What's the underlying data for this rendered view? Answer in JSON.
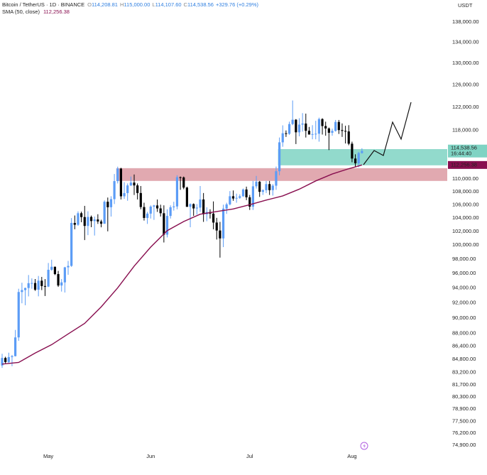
{
  "chart_data": {
    "type": "candlestick",
    "symbol": "Bitcoin / TetherUS · 1D · BINANCE",
    "ohlc_legend": [
      {
        "key": "O",
        "value": "114,208.81"
      },
      {
        "key": "H",
        "value": "115,000.00"
      },
      {
        "key": "L",
        "value": "114,107.60"
      },
      {
        "key": "C",
        "value": "114,538.56"
      }
    ],
    "change": "+329.76 (+0.29%)",
    "currency": "USDT",
    "categories": [
      null,
      null,
      null,
      null,
      null,
      null,
      null,
      null,
      null,
      null,
      null,
      null,
      null,
      null,
      "May",
      null,
      null,
      null,
      null,
      null,
      null,
      null,
      null,
      null,
      null,
      null,
      null,
      null,
      null,
      null,
      null,
      null,
      null,
      null,
      null,
      null,
      null,
      null,
      null,
      null,
      null,
      null,
      null,
      null,
      null,
      "Jun",
      null,
      null,
      null,
      null,
      null,
      null,
      null,
      null,
      null,
      null,
      null,
      null,
      null,
      null,
      null,
      null,
      null,
      null,
      null,
      null,
      null,
      null,
      null,
      null,
      null,
      null,
      null,
      null,
      null,
      "Jul",
      null,
      null,
      null,
      null,
      null,
      null,
      null,
      null,
      null,
      null,
      null,
      null,
      null,
      null,
      null,
      null,
      null,
      null,
      null,
      null,
      null,
      null,
      null,
      null,
      null,
      null,
      null,
      null,
      null,
      null,
      "Aug",
      null,
      null,
      null
    ],
    "open": [
      84030,
      84950,
      84450,
      85060,
      85170,
      87510,
      93440,
      93700,
      93980,
      94640,
      94660,
      93750,
      94980,
      94250,
      94170,
      96490,
      96910,
      95890,
      94320,
      94750,
      96830,
      97030,
      103240,
      102970,
      104700,
      104120,
      102800,
      104140,
      103520,
      103760,
      103460,
      103130,
      106450,
      105610,
      106850,
      109670,
      111670,
      107290,
      107790,
      108990,
      109440,
      108990,
      107800,
      105640,
      103990,
      104640,
      105710,
      105880,
      105430,
      104700,
      101510,
      104290,
      105610,
      105730,
      110290,
      110260,
      108650,
      105670,
      106090,
      105430,
      105550,
      106800,
      104550,
      104880,
      104640,
      103300,
      102120,
      100960,
      105400,
      106050,
      107300,
      106950,
      107050,
      107300,
      108350,
      107140,
      105700,
      108850,
      109580,
      107990,
      108240,
      109200,
      108250,
      108950,
      111250,
      115990,
      117520,
      117420,
      119090,
      119840,
      117680,
      119000,
      119180,
      117940,
      117300,
      117380,
      117440,
      119950,
      118750,
      118340,
      117600,
      117920,
      119450,
      118060,
      117920,
      117830,
      115760,
      113300,
      112530,
      114208.81
    ],
    "high": [
      85470,
      85100,
      85600,
      85320,
      88460,
      93880,
      94700,
      94040,
      95760,
      95300,
      95210,
      95630,
      95500,
      95200,
      97440,
      97900,
      96940,
      96330,
      95200,
      96900,
      97730,
      103970,
      104360,
      104980,
      104940,
      105820,
      104990,
      104350,
      104200,
      104550,
      103720,
      106660,
      107100,
      107300,
      110800,
      111980,
      111800,
      109500,
      109300,
      110400,
      110720,
      109300,
      108900,
      106300,
      104900,
      105900,
      105980,
      106800,
      106000,
      105900,
      105300,
      105900,
      106450,
      110600,
      110400,
      110400,
      108800,
      106200,
      106200,
      106100,
      108900,
      107800,
      105600,
      105300,
      106500,
      104000,
      103400,
      106000,
      106300,
      108100,
      108200,
      107700,
      107600,
      108500,
      108800,
      107500,
      109700,
      110500,
      109700,
      108400,
      109700,
      109700,
      109200,
      111999,
      116800,
      118870,
      118000,
      119500,
      123220,
      119950,
      120100,
      120990,
      120900,
      118600,
      118900,
      119650,
      120200,
      120100,
      119500,
      118500,
      118300,
      119800,
      119800,
      119200,
      118800,
      118900,
      116100,
      114000,
      114400,
      115000
    ],
    "low": [
      83740,
      84300,
      84300,
      83950,
      85140,
      87080,
      91930,
      91670,
      92850,
      93880,
      93600,
      92860,
      93700,
      92900,
      94110,
      96350,
      95750,
      94130,
      93500,
      93370,
      95800,
      96900,
      102300,
      102810,
      103350,
      100720,
      101440,
      102610,
      101380,
      103100,
      102600,
      103100,
      102000,
      104200,
      106100,
      109300,
      106800,
      106900,
      106600,
      108900,
      107500,
      106800,
      105300,
      103600,
      103100,
      103900,
      103700,
      104900,
      104200,
      100370,
      101100,
      103900,
      105100,
      105300,
      108300,
      108400,
      105700,
      102600,
      104300,
      104500,
      104900,
      103400,
      103500,
      103900,
      102300,
      100800,
      98200,
      99700,
      104600,
      105900,
      106600,
      106300,
      106900,
      107200,
      106700,
      105200,
      105200,
      108500,
      107200,
      107500,
      107800,
      107500,
      107400,
      108300,
      110600,
      115250,
      116900,
      117250,
      118900,
      115700,
      117000,
      117800,
      116800,
      117300,
      116500,
      116500,
      116100,
      117300,
      117100,
      114700,
      117100,
      117800,
      117400,
      116900,
      115800,
      115500,
      112700,
      112000,
      111900,
      114107.6
    ],
    "close": [
      84950,
      84450,
      85060,
      85170,
      87510,
      93440,
      93700,
      93980,
      94640,
      94660,
      93750,
      94980,
      94250,
      94170,
      96490,
      96910,
      95890,
      94320,
      94750,
      96830,
      97030,
      103240,
      102970,
      104700,
      104120,
      102800,
      104140,
      103520,
      103760,
      103460,
      103130,
      106450,
      105610,
      106850,
      109670,
      111670,
      107290,
      107790,
      108990,
      109440,
      108990,
      107800,
      105640,
      103990,
      104640,
      105710,
      105880,
      105430,
      104700,
      101510,
      104290,
      105610,
      105730,
      110290,
      110260,
      108650,
      105670,
      106090,
      105430,
      105550,
      106800,
      104550,
      104880,
      104640,
      103300,
      102120,
      100960,
      105400,
      106050,
      107300,
      106950,
      107050,
      107300,
      108350,
      107140,
      105700,
      108850,
      109580,
      107990,
      108240,
      109200,
      108250,
      108950,
      111250,
      115990,
      117520,
      117420,
      119090,
      119840,
      117680,
      119000,
      119180,
      117940,
      117300,
      117380,
      117440,
      119950,
      118750,
      118340,
      117600,
      117920,
      119450,
      118060,
      117920,
      117830,
      115760,
      113300,
      112530,
      114210,
      114538.56
    ],
    "up_color": "#5b9cf6",
    "down_color": "#000000",
    "sma": {
      "name": "SMA (50, close)",
      "color": "#880e4f",
      "x": [
        0,
        5,
        10,
        15,
        20,
        25,
        30,
        35,
        40,
        45,
        50,
        55,
        60,
        65,
        70,
        75,
        80,
        85,
        90,
        95,
        100,
        105,
        109
      ],
      "values": [
        84200,
        84400,
        85550,
        86600,
        87950,
        89300,
        91450,
        94000,
        97000,
        99700,
        102100,
        103450,
        104550,
        104950,
        105350,
        106000,
        106700,
        107350,
        108400,
        109700,
        110800,
        111650,
        112256.38
      ],
      "value_label": "112,256.38"
    },
    "zones": [
      {
        "start": 84,
        "top": 114860,
        "bottom": 112200,
        "color": "#7fd3c3"
      },
      {
        "start": 35,
        "top": 111740,
        "bottom": 109700,
        "color": "#dc9aa2"
      }
    ],
    "countdown": "16:44:40",
    "log_scale": true,
    "ylim": [
      74360,
      142460
    ],
    "yticks": [
      {
        "value": 138000,
        "label": "138,000.00"
      },
      {
        "value": 134000,
        "label": "134,000.00"
      },
      {
        "value": 130000,
        "label": "130,000.00"
      },
      {
        "value": 126000,
        "label": "126,000.00"
      },
      {
        "value": 122000,
        "label": "122,000.00"
      },
      {
        "value": 118000,
        "label": "118,000.00"
      },
      {
        "value": 110000,
        "label": "110,000.00"
      },
      {
        "value": 108000,
        "label": "108,000.00"
      },
      {
        "value": 106000,
        "label": "106,000.00"
      },
      {
        "value": 104000,
        "label": "104,000.00"
      },
      {
        "value": 102000,
        "label": "102,000.00"
      },
      {
        "value": 100000,
        "label": "100,000.00"
      },
      {
        "value": 98000,
        "label": "98,000.00"
      },
      {
        "value": 96000,
        "label": "96,000.00"
      },
      {
        "value": 94000,
        "label": "94,000.00"
      },
      {
        "value": 92000,
        "label": "92,000.00"
      },
      {
        "value": 90000,
        "label": "90,000.00"
      },
      {
        "value": 88000,
        "label": "88,000.00"
      },
      {
        "value": 86400,
        "label": "86,400.00"
      },
      {
        "value": 84800,
        "label": "84,800.00"
      },
      {
        "value": 83200,
        "label": "83,200.00"
      },
      {
        "value": 81700,
        "label": "81,700.00"
      },
      {
        "value": 80300,
        "label": "80,300.00"
      },
      {
        "value": 78900,
        "label": "78,900.00"
      },
      {
        "value": 77500,
        "label": "77,500.00"
      },
      {
        "value": 76200,
        "label": "76,200.00"
      },
      {
        "value": 74900,
        "label": "74,900.00"
      }
    ]
  }
}
